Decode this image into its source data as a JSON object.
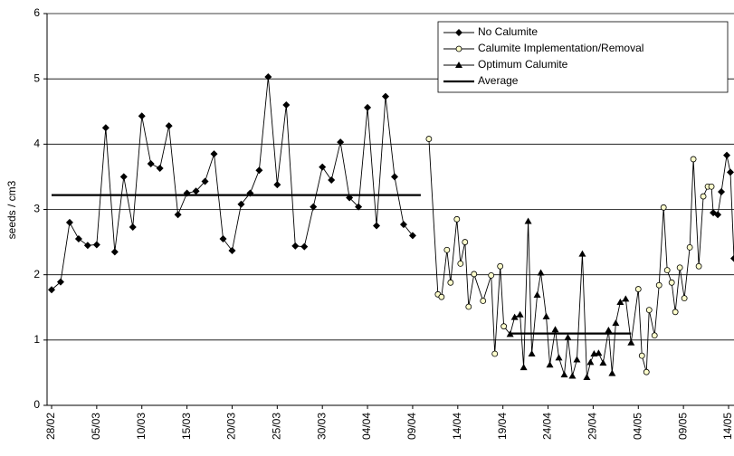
{
  "chart_data": {
    "type": "line",
    "y_label": "seeds / cm3",
    "ylim": [
      0,
      6
    ],
    "yticks": [
      0,
      1,
      2,
      3,
      4,
      5,
      6
    ],
    "grid": true,
    "xlim": [
      -0.5,
      75.6
    ],
    "xticks": [
      {
        "value": 0,
        "label": "28/02"
      },
      {
        "value": 5,
        "label": "05/03"
      },
      {
        "value": 10,
        "label": "10/03"
      },
      {
        "value": 15,
        "label": "15/03"
      },
      {
        "value": 20,
        "label": "20/03"
      },
      {
        "value": 25,
        "label": "25/03"
      },
      {
        "value": 30,
        "label": "30/03"
      },
      {
        "value": 35,
        "label": "04/04"
      },
      {
        "value": 40,
        "label": "09/04"
      },
      {
        "value": 45,
        "label": "14/04"
      },
      {
        "value": 50,
        "label": "19/04"
      },
      {
        "value": 55,
        "label": "24/04"
      },
      {
        "value": 60,
        "label": "29/04"
      },
      {
        "value": 65,
        "label": "04/05"
      },
      {
        "value": 70,
        "label": "09/05"
      },
      {
        "value": 75,
        "label": "14/05"
      }
    ],
    "legend": "top-right",
    "series": [
      {
        "name": "No Calumite",
        "marker": "diamond",
        "color": "#000000",
        "x": [
          0,
          1,
          2,
          3,
          4,
          5,
          6,
          7,
          8,
          9,
          10,
          11,
          12,
          13,
          14,
          15,
          16,
          17,
          18,
          19,
          20,
          21,
          22,
          23,
          24,
          25,
          26,
          27,
          28,
          29,
          30,
          31,
          32,
          33,
          34,
          35,
          36,
          37,
          38,
          39,
          40,
          73.3,
          73.8,
          74.2,
          74.8,
          75.2,
          75.6
        ],
        "values": [
          1.77,
          1.89,
          2.8,
          2.55,
          2.45,
          2.46,
          4.25,
          2.35,
          3.5,
          2.73,
          4.43,
          3.7,
          3.63,
          4.28,
          2.92,
          3.25,
          3.28,
          3.43,
          3.85,
          2.55,
          2.37,
          3.08,
          3.25,
          3.6,
          5.03,
          3.38,
          4.6,
          2.44,
          2.43,
          3.04,
          3.65,
          3.45,
          4.03,
          3.18,
          3.04,
          4.56,
          2.75,
          4.73,
          3.5,
          2.77,
          2.6,
          2.95,
          2.92,
          3.27,
          3.83,
          3.57,
          2.25
        ]
      },
      {
        "name": "Calumite Implementation/Removal",
        "marker": "circle",
        "color": "#000000",
        "fill": "#ffffcc",
        "x": [
          41.8,
          42.8,
          43.2,
          43.8,
          44.2,
          44.9,
          45.3,
          45.8,
          46.2,
          46.8,
          47.8,
          48.7,
          49.1,
          49.7,
          50.1,
          65.0,
          65.4,
          65.9,
          66.2,
          66.8,
          67.3,
          67.8,
          68.2,
          68.7,
          69.1,
          69.6,
          70.1,
          70.7,
          71.1,
          71.7,
          72.2,
          72.7,
          73.1
        ],
        "values": [
          4.08,
          1.7,
          1.66,
          2.38,
          1.88,
          2.85,
          2.17,
          2.5,
          1.51,
          2.01,
          1.6,
          1.99,
          0.79,
          2.13,
          1.21,
          1.78,
          0.76,
          0.51,
          1.46,
          1.07,
          1.84,
          3.03,
          2.07,
          1.88,
          1.43,
          2.11,
          1.64,
          2.42,
          3.77,
          2.13,
          3.2,
          3.35,
          3.35
        ]
      },
      {
        "name": "Optimum Calumite",
        "marker": "triangle",
        "color": "#000000",
        "x": [
          50.8,
          51.3,
          51.9,
          52.3,
          52.8,
          53.2,
          53.8,
          54.2,
          54.8,
          55.2,
          55.8,
          56.2,
          56.8,
          57.2,
          57.7,
          58.2,
          58.8,
          59.3,
          59.7,
          60.1,
          60.6,
          61.1,
          61.7,
          62.1,
          62.5,
          63.0,
          63.6,
          64.2
        ],
        "values": [
          1.09,
          1.35,
          1.39,
          0.58,
          2.82,
          0.79,
          1.69,
          2.03,
          1.36,
          0.62,
          1.16,
          0.73,
          0.47,
          1.04,
          0.45,
          0.7,
          2.32,
          0.43,
          0.66,
          0.79,
          0.8,
          0.65,
          1.15,
          0.49,
          1.26,
          1.58,
          1.63,
          0.96
        ]
      },
      {
        "name": "Average",
        "marker": "none",
        "color": "#000000",
        "x": [
          0,
          40.9,
          null,
          50.8,
          64.2
        ],
        "values": [
          3.22,
          3.22,
          null,
          1.1,
          1.1
        ]
      }
    ]
  }
}
